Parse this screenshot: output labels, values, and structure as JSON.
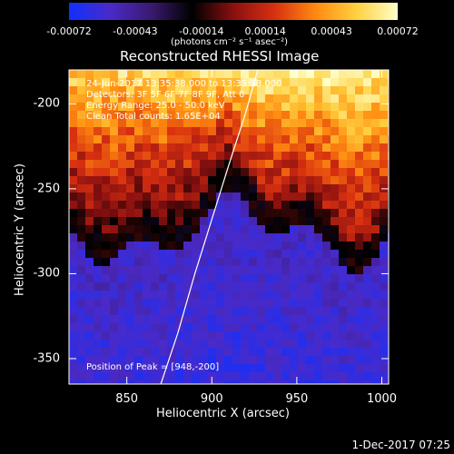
{
  "colorbar": {
    "ticks": [
      "-0.00072",
      "-0.00043",
      "-0.00014",
      "0.00014",
      "0.00043",
      "0.00072"
    ],
    "tick_values": [
      -0.00072,
      -0.00043,
      -0.00014,
      0.00014,
      0.00043,
      0.00072
    ],
    "range": [
      -0.00072,
      0.00072
    ],
    "unit_label": "(photons cm⁻² s⁻¹ asec⁻²)",
    "colors": [
      "#1030ff",
      "#4a2ac8",
      "#3a1a70",
      "#000000",
      "#8a1010",
      "#d83010",
      "#ff8a10",
      "#ffd040",
      "#ffffc8"
    ]
  },
  "chart_data": {
    "type": "heatmap",
    "title": "Reconstructed RHESSI Image",
    "xlabel": "Heliocentric X (arcsec)",
    "ylabel": "Heliocentric Y (arcsec)",
    "xlim": [
      816,
      1004
    ],
    "ylim": [
      -365,
      -180
    ],
    "xticks": [
      "850",
      "900",
      "950",
      "1000"
    ],
    "xtick_values": [
      850,
      900,
      950,
      1000
    ],
    "yticks": [
      "-200",
      "-250",
      "-300",
      "-350"
    ],
    "ytick_values": [
      -200,
      -250,
      -300,
      -350
    ],
    "limb_curve": [
      [
        870,
        -365
      ],
      [
        880,
        -335
      ],
      [
        890,
        -300
      ],
      [
        900,
        -268
      ],
      [
        910,
        -236
      ],
      [
        920,
        -205
      ],
      [
        927,
        -180
      ]
    ],
    "peak": [
      948,
      -200
    ],
    "annotations": {
      "time": "24-Jun-2017 13:35:38.000 to 13:35:38.000",
      "detectors": "Detectors: 3F 5F 6F 7F 8F 9F, Att 0",
      "energy": "Energy Range: 25.0 - 50.0 keV",
      "method": "Clean     Total counts: 1.65E+04",
      "peak_text": "Position of Peak = [948,-200]"
    }
  },
  "footer": {
    "date": "1-Dec-2017 07:25"
  }
}
